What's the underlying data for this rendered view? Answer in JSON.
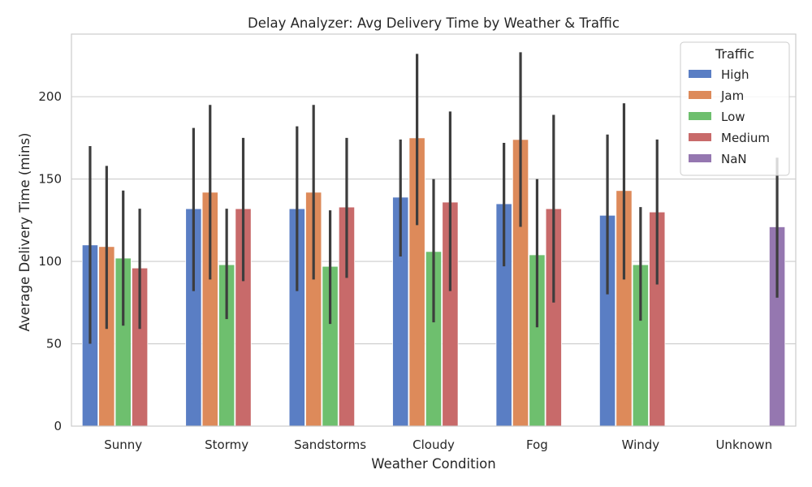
{
  "chart_data": {
    "type": "bar",
    "title": "Delay Analyzer: Avg Delivery Time by Weather & Traffic",
    "xlabel": "Weather Condition",
    "ylabel": "Average Delivery Time (mins)",
    "ylim": [
      0,
      238
    ],
    "yticks": [
      0,
      50,
      100,
      150,
      200
    ],
    "grid": true,
    "legend": {
      "title": "Traffic",
      "placement": "top-right"
    },
    "categories": [
      "Sunny",
      "Stormy",
      "Sandstorms",
      "Cloudy",
      "Fog",
      "Windy",
      "Unknown"
    ],
    "series": [
      {
        "name": "High",
        "color": "#5a7ec4",
        "values": [
          110,
          132,
          132,
          139,
          135,
          128,
          null
        ],
        "err_low": [
          50,
          82,
          82,
          103,
          97,
          80,
          null
        ],
        "err_high": [
          170,
          181,
          182,
          174,
          172,
          177,
          null
        ]
      },
      {
        "name": "Jam",
        "color": "#dd8a5a",
        "values": [
          109,
          142,
          142,
          175,
          174,
          143,
          null
        ],
        "err_low": [
          59,
          89,
          89,
          122,
          121,
          89,
          null
        ],
        "err_high": [
          158,
          195,
          195,
          226,
          227,
          196,
          null
        ]
      },
      {
        "name": "Low",
        "color": "#6ebf6e",
        "values": [
          102,
          98,
          97,
          106,
          104,
          98,
          null
        ],
        "err_low": [
          61,
          65,
          62,
          63,
          60,
          64,
          null
        ],
        "err_high": [
          143,
          132,
          131,
          150,
          150,
          133,
          null
        ]
      },
      {
        "name": "Medium",
        "color": "#c86a6a",
        "values": [
          96,
          132,
          133,
          136,
          132,
          130,
          null
        ],
        "err_low": [
          59,
          88,
          90,
          82,
          75,
          86,
          null
        ],
        "err_high": [
          132,
          175,
          175,
          191,
          189,
          174,
          null
        ]
      },
      {
        "name": "NaN",
        "color": "#9577b0",
        "values": [
          null,
          null,
          null,
          null,
          null,
          null,
          121
        ],
        "err_low": [
          null,
          null,
          null,
          null,
          null,
          null,
          78
        ],
        "err_high": [
          null,
          null,
          null,
          null,
          null,
          null,
          163
        ]
      }
    ]
  }
}
